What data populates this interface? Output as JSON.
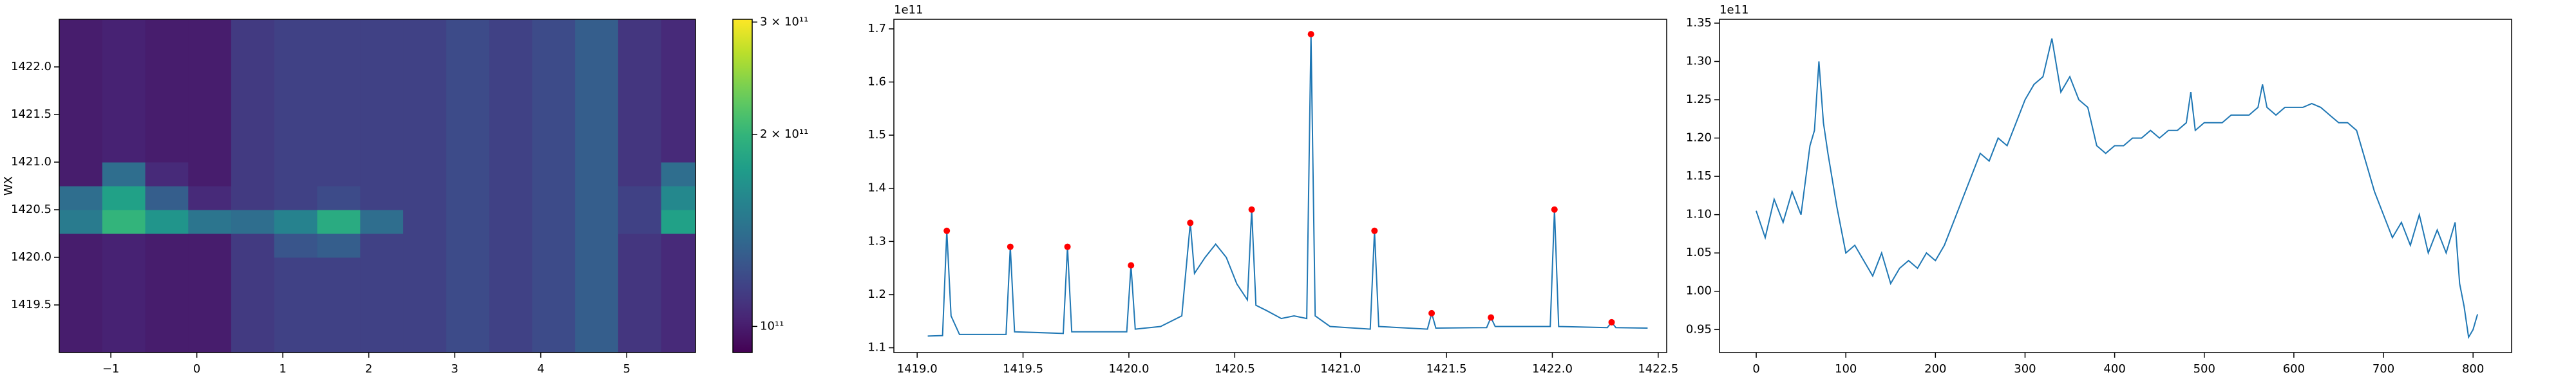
{
  "chart_data": [
    {
      "type": "heatmap",
      "ylabel": "WX",
      "xlim": [
        -1.6,
        5.8
      ],
      "ylim": [
        1419.0,
        1422.5
      ],
      "xticks": [
        {
          "value": -1,
          "label": "−1"
        },
        0,
        1,
        2,
        3,
        4,
        5
      ],
      "yticks": [
        1419.5,
        {
          "value": 1420,
          "label": "1420.0"
        },
        1420.5,
        {
          "value": 1421,
          "label": "1421.0"
        },
        1421.5,
        {
          "value": 1422,
          "label": "1422.0"
        }
      ],
      "x_edges": [
        -1.6,
        -1.1,
        -0.6,
        -0.1,
        0.4,
        0.9,
        1.4,
        1.9,
        2.4,
        2.9,
        3.4,
        3.9,
        4.4,
        4.9,
        5.4,
        5.8
      ],
      "y_edges": [
        1419.0,
        1419.25,
        1419.5,
        1419.75,
        1420.0,
        1420.25,
        1420.5,
        1420.75,
        1421.0,
        1421.25,
        1421.5,
        1421.75,
        1422.0,
        1422.25,
        1422.5
      ],
      "z": [
        [
          100000000000.0,
          102000000000.0,
          100000000000.0,
          100000000000.0,
          112000000000.0,
          115000000000.0,
          115000000000.0,
          115000000000.0,
          115000000000.0,
          120000000000.0,
          115000000000.0,
          120000000000.0,
          130000000000.0,
          110000000000.0,
          105000000000.0
        ],
        [
          100000000000.0,
          102000000000.0,
          100000000000.0,
          100000000000.0,
          112000000000.0,
          115000000000.0,
          115000000000.0,
          115000000000.0,
          115000000000.0,
          120000000000.0,
          115000000000.0,
          120000000000.0,
          130000000000.0,
          110000000000.0,
          105000000000.0
        ],
        [
          100000000000.0,
          102000000000.0,
          100000000000.0,
          100000000000.0,
          112000000000.0,
          115000000000.0,
          115000000000.0,
          115000000000.0,
          115000000000.0,
          120000000000.0,
          115000000000.0,
          120000000000.0,
          130000000000.0,
          110000000000.0,
          105000000000.0
        ],
        [
          100000000000.0,
          102000000000.0,
          100000000000.0,
          100000000000.0,
          112000000000.0,
          115000000000.0,
          115000000000.0,
          115000000000.0,
          115000000000.0,
          120000000000.0,
          115000000000.0,
          120000000000.0,
          130000000000.0,
          110000000000.0,
          105000000000.0
        ],
        [
          100000000000.0,
          102000000000.0,
          100000000000.0,
          100000000000.0,
          112000000000.0,
          125000000000.0,
          130000000000.0,
          115000000000.0,
          115000000000.0,
          120000000000.0,
          115000000000.0,
          120000000000.0,
          130000000000.0,
          110000000000.0,
          105000000000.0
        ],
        [
          150000000000.0,
          200000000000.0,
          170000000000.0,
          145000000000.0,
          140000000000.0,
          155000000000.0,
          190000000000.0,
          140000000000.0,
          115000000000.0,
          120000000000.0,
          115000000000.0,
          120000000000.0,
          130000000000.0,
          115000000000.0,
          180000000000.0
        ],
        [
          140000000000.0,
          180000000000.0,
          130000000000.0,
          105000000000.0,
          112000000000.0,
          115000000000.0,
          120000000000.0,
          115000000000.0,
          115000000000.0,
          120000000000.0,
          115000000000.0,
          120000000000.0,
          130000000000.0,
          115000000000.0,
          160000000000.0
        ],
        [
          100000000000.0,
          140000000000.0,
          105000000000.0,
          100000000000.0,
          112000000000.0,
          115000000000.0,
          115000000000.0,
          115000000000.0,
          115000000000.0,
          120000000000.0,
          115000000000.0,
          120000000000.0,
          130000000000.0,
          110000000000.0,
          140000000000.0
        ],
        [
          100000000000.0,
          102000000000.0,
          100000000000.0,
          100000000000.0,
          112000000000.0,
          115000000000.0,
          115000000000.0,
          115000000000.0,
          115000000000.0,
          120000000000.0,
          115000000000.0,
          120000000000.0,
          130000000000.0,
          110000000000.0,
          105000000000.0
        ],
        [
          100000000000.0,
          102000000000.0,
          100000000000.0,
          100000000000.0,
          112000000000.0,
          115000000000.0,
          115000000000.0,
          115000000000.0,
          115000000000.0,
          120000000000.0,
          115000000000.0,
          120000000000.0,
          130000000000.0,
          110000000000.0,
          105000000000.0
        ],
        [
          100000000000.0,
          102000000000.0,
          100000000000.0,
          100000000000.0,
          112000000000.0,
          115000000000.0,
          115000000000.0,
          115000000000.0,
          115000000000.0,
          120000000000.0,
          115000000000.0,
          120000000000.0,
          130000000000.0,
          110000000000.0,
          105000000000.0
        ],
        [
          100000000000.0,
          102000000000.0,
          100000000000.0,
          100000000000.0,
          112000000000.0,
          115000000000.0,
          115000000000.0,
          115000000000.0,
          115000000000.0,
          120000000000.0,
          115000000000.0,
          120000000000.0,
          130000000000.0,
          110000000000.0,
          105000000000.0
        ],
        [
          100000000000.0,
          102000000000.0,
          100000000000.0,
          100000000000.0,
          112000000000.0,
          115000000000.0,
          115000000000.0,
          115000000000.0,
          115000000000.0,
          120000000000.0,
          115000000000.0,
          120000000000.0,
          130000000000.0,
          110000000000.0,
          105000000000.0
        ],
        [
          100000000000.0,
          102000000000.0,
          100000000000.0,
          100000000000.0,
          112000000000.0,
          115000000000.0,
          115000000000.0,
          115000000000.0,
          115000000000.0,
          120000000000.0,
          115000000000.0,
          120000000000.0,
          130000000000.0,
          110000000000.0,
          105000000000.0
        ]
      ],
      "colormap": "viridis",
      "colorbar": {
        "scale": "log",
        "lim": [
          91000000000.0,
          303000000000.0
        ],
        "ticks": [
          {
            "value": 300000000000.0,
            "label": "3 × 10¹¹"
          },
          {
            "value": 200000000000.0,
            "label": "2 × 10¹¹"
          },
          {
            "value": 100000000000.0,
            "label": "10¹¹"
          }
        ]
      }
    },
    {
      "type": "line",
      "offset_text": "1e11",
      "color": "#1f77b4",
      "xlim": [
        1418.89,
        1422.54
      ],
      "ylim": [
        1.091,
        1.718
      ],
      "xticks": [
        {
          "value": 1419,
          "label": "1419.0"
        },
        1419.5,
        {
          "value": 1420,
          "label": "1420.0"
        },
        1420.5,
        {
          "value": 1421,
          "label": "1421.0"
        },
        1421.5,
        {
          "value": 1422,
          "label": "1422.0"
        },
        1422.5
      ],
      "yticks": [
        1.1,
        1.2,
        1.3,
        1.4,
        1.5,
        1.6,
        1.7
      ],
      "x": [
        1419.05,
        1419.12,
        1419.14,
        1419.16,
        1419.2,
        1419.42,
        1419.44,
        1419.46,
        1419.69,
        1419.71,
        1419.73,
        1419.99,
        1420.01,
        1420.03,
        1420.15,
        1420.25,
        1420.29,
        1420.31,
        1420.36,
        1420.41,
        1420.46,
        1420.51,
        1420.56,
        1420.58,
        1420.6,
        1420.65,
        1420.72,
        1420.78,
        1420.84,
        1420.86,
        1420.88,
        1420.95,
        1421.14,
        1421.16,
        1421.18,
        1421.41,
        1421.43,
        1421.45,
        1421.69,
        1421.71,
        1421.73,
        1421.99,
        1422.01,
        1422.03,
        1422.26,
        1422.28,
        1422.3,
        1422.45
      ],
      "values": [
        1.122,
        1.123,
        1.32,
        1.16,
        1.125,
        1.125,
        1.29,
        1.13,
        1.127,
        1.29,
        1.13,
        1.13,
        1.255,
        1.135,
        1.14,
        1.16,
        1.335,
        1.24,
        1.27,
        1.295,
        1.27,
        1.22,
        1.19,
        1.36,
        1.18,
        1.17,
        1.155,
        1.16,
        1.155,
        1.69,
        1.16,
        1.14,
        1.135,
        1.32,
        1.14,
        1.135,
        1.165,
        1.137,
        1.138,
        1.157,
        1.14,
        1.14,
        1.36,
        1.14,
        1.138,
        1.148,
        1.138,
        1.137
      ],
      "peaks": {
        "color": "red",
        "x": [
          1419.14,
          1419.44,
          1419.71,
          1420.01,
          1420.29,
          1420.58,
          1420.86,
          1421.16,
          1421.43,
          1421.71,
          1422.01,
          1422.28
        ],
        "values": [
          1.32,
          1.29,
          1.29,
          1.255,
          1.335,
          1.36,
          1.69,
          1.32,
          1.165,
          1.157,
          1.36,
          1.148
        ]
      }
    },
    {
      "type": "line",
      "offset_text": "1e11",
      "color": "#1f77b4",
      "xlim": [
        -41,
        843
      ],
      "ylim": [
        0.92,
        1.355
      ],
      "xticks": [
        0,
        100,
        200,
        300,
        400,
        500,
        600,
        700,
        800
      ],
      "yticks": [
        0.95,
        {
          "value": 1,
          "label": "1.00"
        },
        1.05,
        {
          "value": 1.1,
          "label": "1.10"
        },
        1.15,
        {
          "value": 1.2,
          "label": "1.20"
        },
        1.25,
        {
          "value": 1.3,
          "label": "1.30"
        },
        1.35
      ],
      "x": [
        0,
        10,
        20,
        30,
        40,
        50,
        60,
        65,
        70,
        75,
        80,
        90,
        100,
        110,
        120,
        130,
        140,
        150,
        160,
        170,
        180,
        190,
        200,
        210,
        220,
        230,
        240,
        250,
        260,
        270,
        280,
        290,
        300,
        310,
        320,
        330,
        340,
        350,
        360,
        370,
        380,
        390,
        400,
        410,
        420,
        430,
        440,
        450,
        460,
        470,
        480,
        485,
        490,
        500,
        510,
        520,
        530,
        540,
        550,
        560,
        565,
        570,
        580,
        590,
        600,
        610,
        620,
        630,
        640,
        650,
        660,
        670,
        680,
        690,
        700,
        710,
        720,
        730,
        740,
        750,
        760,
        770,
        780,
        785,
        790,
        795,
        800,
        805
      ],
      "values": [
        1.105,
        1.07,
        1.12,
        1.09,
        1.13,
        1.1,
        1.19,
        1.21,
        1.3,
        1.22,
        1.18,
        1.11,
        1.05,
        1.06,
        1.04,
        1.02,
        1.05,
        1.01,
        1.03,
        1.04,
        1.03,
        1.05,
        1.04,
        1.06,
        1.09,
        1.12,
        1.15,
        1.18,
        1.17,
        1.2,
        1.19,
        1.22,
        1.25,
        1.27,
        1.28,
        1.33,
        1.26,
        1.28,
        1.25,
        1.24,
        1.19,
        1.18,
        1.19,
        1.19,
        1.2,
        1.2,
        1.21,
        1.2,
        1.21,
        1.21,
        1.22,
        1.26,
        1.21,
        1.22,
        1.22,
        1.22,
        1.23,
        1.23,
        1.23,
        1.24,
        1.27,
        1.24,
        1.23,
        1.24,
        1.24,
        1.24,
        1.245,
        1.24,
        1.23,
        1.22,
        1.22,
        1.21,
        1.17,
        1.13,
        1.1,
        1.07,
        1.09,
        1.06,
        1.1,
        1.05,
        1.08,
        1.05,
        1.09,
        1.01,
        0.98,
        0.94,
        0.95,
        0.97
      ]
    }
  ]
}
